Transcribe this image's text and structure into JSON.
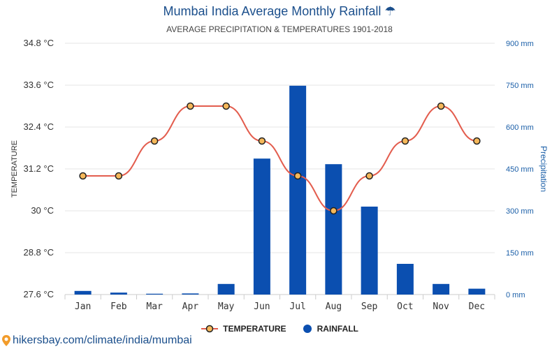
{
  "header": {
    "title": "Mumbai India Average Monthly Rainfall",
    "title_icon": "☂",
    "subtitle": "AVERAGE PRECIPITATION & TEMPERATURES 1901-2018"
  },
  "legend": {
    "temperature_label": "TEMPERATURE",
    "rainfall_label": "RAINFALL"
  },
  "footer": {
    "source_text": "hikersbay.com/climate/india/mumbai"
  },
  "colors": {
    "title": "#1b4f8c",
    "bar": "#0b4fb0",
    "line": "#e35d4e",
    "marker_fill": "#f5b85a",
    "marker_stroke": "#222222",
    "grid": "#e6e6e6",
    "right_axis": "#1b5fa8"
  },
  "chart_data": {
    "type": "bar+line",
    "title": "Mumbai India Average Monthly Rainfall",
    "subtitle": "AVERAGE PRECIPITATION & TEMPERATURES 1901-2018",
    "categories": [
      "Jan",
      "Feb",
      "Mar",
      "Apr",
      "May",
      "Jun",
      "Jul",
      "Aug",
      "Sep",
      "Oct",
      "Nov",
      "Dec"
    ],
    "left_axis": {
      "label": "TEMPERATURE",
      "ticks": [
        "34.8 °C",
        "33.6 °C",
        "32.4 °C",
        "31.2 °C",
        "30 °C",
        "28.8 °C",
        "27.6 °C"
      ],
      "range": [
        27.6,
        34.8
      ]
    },
    "right_axis": {
      "label": "Precipitation",
      "ticks": [
        "900 mm",
        "750 mm",
        "600 mm",
        "450 mm",
        "300 mm",
        "150 mm",
        "0 mm"
      ],
      "range": [
        0,
        900
      ]
    },
    "series": [
      {
        "name": "RAINFALL",
        "type": "bar",
        "axis": "right",
        "unit": "mm",
        "values": [
          13,
          7,
          3,
          4,
          38,
          487,
          748,
          467,
          315,
          110,
          38,
          21
        ]
      },
      {
        "name": "TEMPERATURE",
        "type": "line",
        "axis": "left",
        "unit": "°C",
        "values": [
          31,
          31,
          32,
          33,
          33,
          32,
          31,
          30,
          31,
          32,
          33,
          32
        ]
      }
    ],
    "grid": true
  }
}
